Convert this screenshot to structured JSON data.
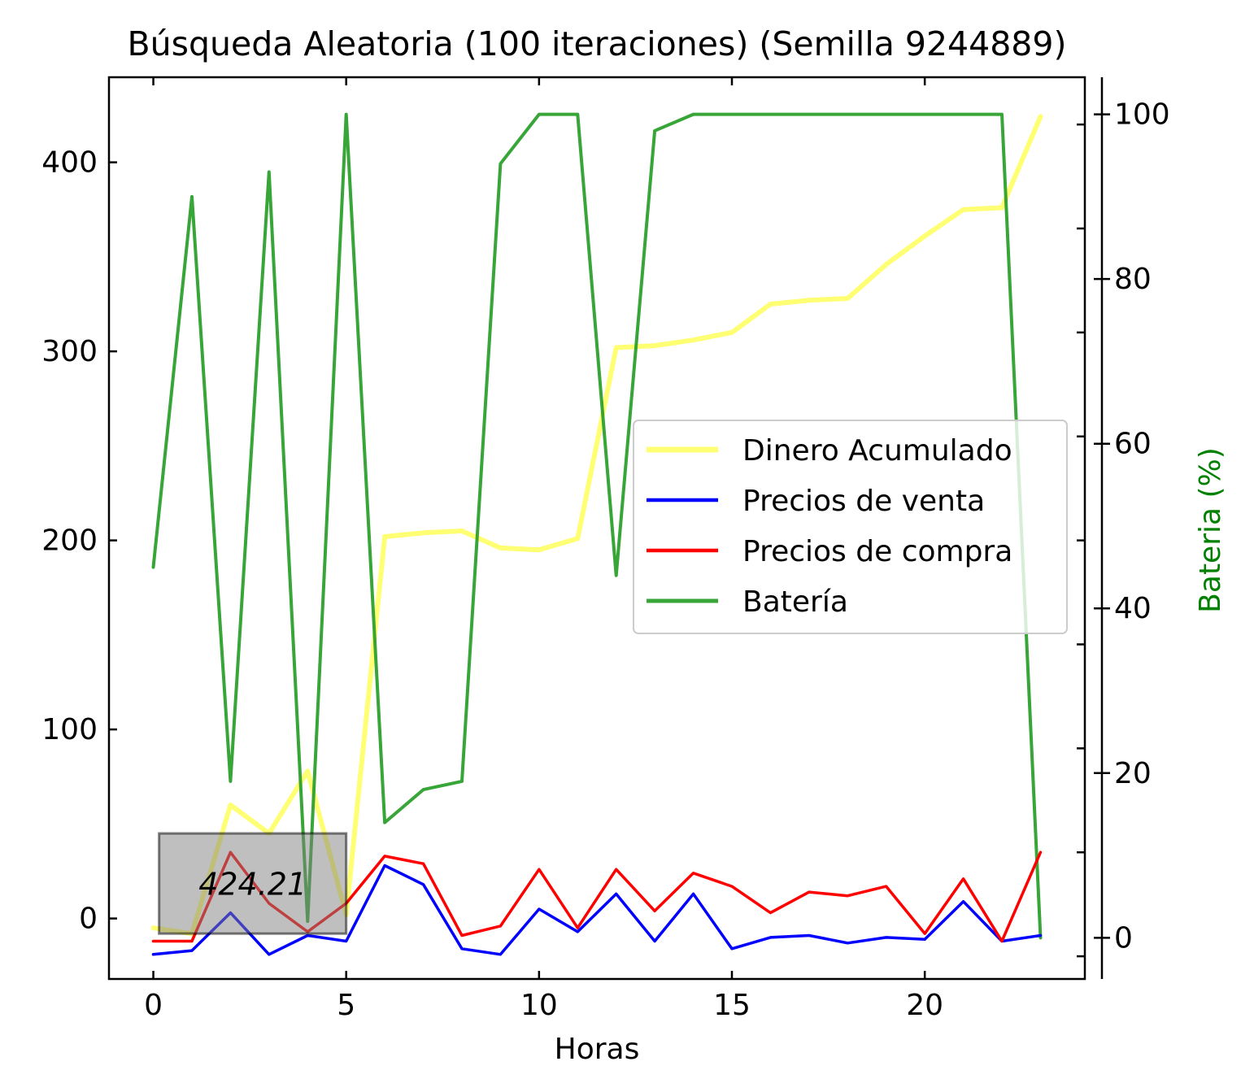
{
  "chart_data": {
    "type": "line",
    "title": "Búsqueda Aleatoria (100 iteraciones) (Semilla 9244889)",
    "xlabel": "Horas",
    "ylabel": "",
    "y2label": "Bateria (%)",
    "xlim": [
      -1.15,
      24.15
    ],
    "ylim": [
      -32,
      445
    ],
    "y2lim": [
      -5,
      104.5
    ],
    "xticks": [
      0,
      5,
      10,
      15,
      20
    ],
    "yticks": [
      0,
      100,
      200,
      300,
      400
    ],
    "y2ticks": [
      0,
      20,
      40,
      60,
      80,
      100
    ],
    "grid": false,
    "legend_position": "center-right",
    "x": [
      0,
      1,
      2,
      3,
      4,
      5,
      6,
      7,
      8,
      9,
      10,
      11,
      12,
      13,
      14,
      15,
      16,
      17,
      18,
      19,
      20,
      21,
      22,
      23
    ],
    "series": [
      {
        "name": "Dinero Acumulado",
        "axis": "left",
        "color": "#ffff00",
        "values": [
          -5,
          -8,
          60,
          45,
          78,
          2,
          202,
          204,
          205,
          196,
          195,
          201,
          302,
          303,
          306,
          310,
          325,
          327,
          328,
          346,
          361,
          375,
          376,
          424.21
        ]
      },
      {
        "name": "Precios de venta",
        "axis": "left",
        "color": "#0000ff",
        "values": [
          -19,
          -17,
          3,
          -19,
          -9,
          -12,
          28,
          18,
          -16,
          -19,
          5,
          -7,
          13,
          -12,
          13,
          -16,
          -10,
          -9,
          -13,
          -10,
          -11,
          9,
          -12,
          -9
        ]
      },
      {
        "name": "Precios de compra",
        "axis": "left",
        "color": "#ff0000",
        "values": [
          -12,
          -12,
          35,
          8,
          -7,
          8,
          33,
          29,
          -9,
          -4,
          26,
          -5,
          26,
          4,
          24,
          17,
          3,
          14,
          12,
          17,
          -8,
          21,
          -12,
          35
        ]
      },
      {
        "name": "Batería",
        "axis": "right",
        "color": "#2ca02c",
        "values": [
          45,
          90,
          19,
          93,
          2,
          100,
          14,
          18,
          19,
          94,
          100,
          100,
          44,
          98,
          100,
          100,
          100,
          100,
          100,
          100,
          100,
          100,
          100,
          0
        ]
      }
    ],
    "annotation": {
      "text": "424.21",
      "box_x": [
        0.15,
        5.0
      ],
      "box_y": [
        -8,
        45
      ]
    }
  }
}
